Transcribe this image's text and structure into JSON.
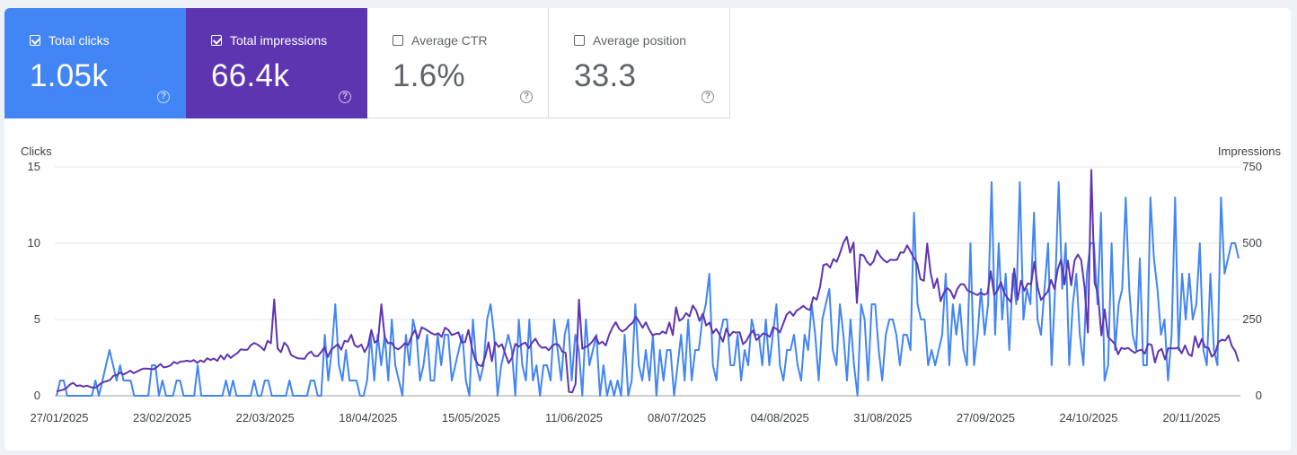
{
  "tiles": [
    {
      "label": "Total clicks",
      "value": "1.05k",
      "checked": true,
      "help": "?"
    },
    {
      "label": "Total impressions",
      "value": "66.4k",
      "checked": true,
      "help": "?"
    },
    {
      "label": "Average CTR",
      "value": "1.6%",
      "checked": false,
      "help": "?"
    },
    {
      "label": "Average position",
      "value": "33.3",
      "checked": false,
      "help": "?"
    }
  ],
  "colors": {
    "clicks": "#4285f4",
    "impressions": "#5e35b1",
    "grid": "#e6e6e6",
    "text": "#3c4043"
  },
  "chart_data": {
    "type": "line",
    "left_axis_label": "Clicks",
    "right_axis_label": "Impressions",
    "left_ticks": [
      0,
      5,
      10,
      15
    ],
    "right_ticks": [
      0,
      250,
      500,
      750
    ],
    "left_ylim": [
      0,
      15
    ],
    "right_ylim": [
      0,
      750
    ],
    "x_tick_labels": [
      "27/01/2025",
      "23/02/2025",
      "22/03/2025",
      "18/04/2025",
      "15/05/2025",
      "11/06/2025",
      "08/07/2025",
      "04/08/2025",
      "31/08/2025",
      "27/09/2025",
      "24/10/2025",
      "20/11/2025"
    ],
    "series": [
      {
        "name": "Clicks",
        "axis": "left",
        "color": "#4285f4",
        "values": [
          0,
          1,
          1,
          0,
          0,
          0,
          0,
          0,
          0,
          0,
          0,
          1,
          0,
          1,
          2,
          3,
          2,
          1,
          2,
          1,
          1,
          1,
          0,
          0,
          0,
          0,
          0,
          2,
          2,
          0,
          1,
          0,
          0,
          0,
          1,
          1,
          0,
          0,
          0,
          0,
          2,
          0,
          0,
          0,
          0,
          0,
          0,
          0,
          1,
          0,
          1,
          0,
          0,
          0,
          0,
          0,
          1,
          0,
          0,
          1,
          1,
          0,
          0,
          0,
          0,
          0,
          1,
          0,
          0,
          0,
          0,
          0,
          1,
          1,
          0,
          0,
          4,
          1,
          3,
          6,
          2,
          1,
          3,
          1,
          1,
          1,
          0,
          0,
          1,
          4,
          1,
          4,
          2,
          4,
          1,
          5,
          2,
          1,
          0,
          4,
          2,
          5,
          4,
          1,
          2,
          4,
          1,
          1,
          4,
          2,
          4,
          4,
          1,
          2,
          3,
          4,
          1,
          0,
          5,
          2,
          1,
          2,
          5,
          6,
          4,
          0,
          2,
          3,
          4,
          3,
          0,
          5,
          2,
          1,
          5,
          1,
          2,
          0,
          2,
          2,
          1,
          5,
          3,
          1,
          4,
          5,
          1,
          4,
          3,
          0,
          5,
          2,
          3,
          4,
          0,
          2,
          0,
          1,
          0,
          1,
          0,
          4,
          0,
          1,
          6,
          2,
          1,
          3,
          1,
          4,
          0,
          3,
          1,
          3,
          3,
          0,
          2,
          4,
          1,
          5,
          1,
          3,
          3,
          5,
          6,
          8,
          2,
          1,
          4,
          5,
          5,
          2,
          2,
          4,
          1,
          3,
          2,
          5,
          4,
          4,
          2,
          5,
          2,
          4,
          6,
          2,
          1,
          3,
          3,
          4,
          2,
          1,
          4,
          3,
          6,
          4,
          1,
          5,
          6,
          7,
          3,
          2,
          6,
          4,
          1,
          5,
          2,
          0,
          6,
          5,
          1,
          6,
          6,
          3,
          1,
          4,
          5,
          5,
          4,
          2,
          4,
          4,
          3,
          12,
          6,
          5,
          5,
          2,
          3,
          2,
          3,
          4,
          8,
          2,
          6,
          4,
          6,
          3,
          2,
          10,
          2,
          4,
          7,
          4,
          6,
          14,
          4,
          10,
          5,
          8,
          3,
          8,
          6,
          14,
          5,
          7,
          6,
          12,
          5,
          4,
          7,
          10,
          2,
          7,
          14,
          7,
          10,
          2,
          6,
          8,
          4,
          2,
          8,
          10,
          10,
          6,
          12,
          1,
          2,
          10,
          3,
          6,
          7,
          13,
          7,
          4,
          3,
          9,
          2,
          2,
          13,
          9,
          7,
          4,
          5,
          1,
          4,
          13,
          3,
          8,
          5,
          8,
          5,
          6,
          10,
          3,
          2,
          8,
          3,
          2,
          13,
          8,
          9,
          10,
          10,
          9
        ]
      },
      {
        "name": "Impressions",
        "axis": "right",
        "color": "#5e35b1",
        "values": [
          14,
          17,
          20,
          26,
          37,
          42,
          32,
          34,
          30,
          33,
          29,
          26,
          28,
          39,
          45,
          48,
          52,
          66,
          68,
          76,
          70,
          76,
          82,
          74,
          79,
          85,
          89,
          89,
          88,
          87,
          94,
          104,
          93,
          95,
          99,
          111,
          106,
          112,
          113,
          115,
          112,
          117,
          108,
          116,
          111,
          123,
          117,
          122,
          114,
          132,
          119,
          136,
          124,
          133,
          140,
          152,
          151,
          151,
          166,
          173,
          168,
          160,
          149,
          180,
          172,
          316,
          155,
          143,
          174,
          163,
          134,
          128,
          123,
          122,
          121,
          137,
          145,
          130,
          130,
          143,
          159,
          127,
          151,
          160,
          169,
          151,
          180,
          177,
          200,
          166,
          159,
          168,
          143,
          164,
          216,
          174,
          182,
          300,
          192,
          172,
          174,
          158,
          152,
          160,
          172,
          166,
          195,
          215,
          187,
          224,
          219,
          212,
          205,
          200,
          205,
          193,
          223,
          216,
          199,
          203,
          208,
          175,
          176,
          216,
          158,
          119,
          101,
          97,
          128,
          175,
          113,
          176,
          160,
          169,
          137,
          107,
          124,
          170,
          161,
          169,
          174,
          156,
          174,
          187,
          167,
          157,
          159,
          149,
          164,
          170,
          166,
          145,
          141,
          13,
          11,
          39,
          315,
          154,
          160,
          166,
          178,
          195,
          170,
          177,
          165,
          199,
          224,
          241,
          219,
          211,
          218,
          230,
          239,
          259,
          242,
          223,
          241,
          216,
          198,
          203,
          202,
          211,
          204,
          240,
          199,
          290,
          246,
          253,
          271,
          260,
          296,
          279,
          245,
          269,
          230,
          240,
          205,
          219,
          199,
          177,
          220,
          196,
          209,
          207,
          208,
          169,
          180,
          200,
          214,
          182,
          193,
          204,
          201,
          193,
          225,
          219,
          208,
          236,
          266,
          276,
          262,
          279,
          286,
          295,
          285,
          281,
          323,
          315,
          357,
          428,
          432,
          420,
          448,
          439,
          469,
          502,
          521,
          469,
          502,
          304,
          463,
          460,
          439,
          428,
          441,
          476,
          457,
          445,
          437,
          446,
          445,
          446,
          470,
          469,
          493,
          473,
          452,
          433,
          382,
          377,
          499,
          405,
          353,
          384,
          310,
          338,
          353,
          343,
          319,
          350,
          366,
          365,
          346,
          340,
          335,
          330,
          338,
          331,
          336,
          408,
          330,
          345,
          373,
          337,
          320,
          307,
          417,
          315,
          377,
          344,
          368,
          366,
          439,
          356,
          314,
          328,
          341,
          380,
          350,
          415,
          447,
          365,
          443,
          362,
          443,
          463,
          444,
          355,
          207,
          740,
          369,
          336,
          198,
          283,
          193,
          182,
          170,
          136,
          157,
          153,
          157,
          148,
          141,
          148,
          151,
          138,
          170,
          167,
          109,
          145,
          154,
          119,
          156,
          155,
          155,
          158,
          139,
          165,
          137,
          130,
          195,
          158,
          186,
          159,
          157,
          128,
          140,
          176,
          184,
          181,
          198,
          163,
          146,
          112
        ]
      }
    ]
  }
}
